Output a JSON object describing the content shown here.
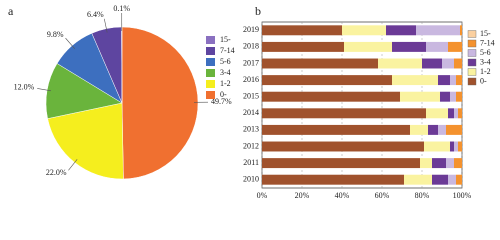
{
  "chart_data": [
    {
      "type": "pie",
      "panel": "a",
      "categories": [
        "0-",
        "1-2",
        "3-4",
        "5-6",
        "7-14",
        "15-"
      ],
      "values": [
        49.7,
        22.0,
        12.0,
        9.8,
        6.4,
        0.1
      ],
      "value_labels": [
        "49.7%",
        "22.0%",
        "12.0%",
        "9.8%",
        "6.4%",
        "0.1%"
      ],
      "colors": [
        "#f07030",
        "#f5ee1e",
        "#6ab43c",
        "#3d6fbf",
        "#5e45a0",
        "#8a70c0"
      ]
    },
    {
      "type": "stacked-bar-horizontal",
      "panel": "b",
      "categories": [
        "2010",
        "2011",
        "2012",
        "2013",
        "2014",
        "2015",
        "2016",
        "2017",
        "2018",
        "2019"
      ],
      "series": [
        {
          "name": "0-",
          "color": "#a0522d",
          "values": [
            71,
            79,
            81,
            74,
            82,
            69,
            65,
            58,
            41,
            40
          ]
        },
        {
          "name": "1-2",
          "color": "#faf3a0",
          "values": [
            14,
            6,
            13,
            9,
            11,
            20,
            23,
            22,
            24,
            22
          ]
        },
        {
          "name": "3-4",
          "color": "#6b3a96",
          "values": [
            8,
            7,
            2,
            5,
            3,
            5,
            6,
            10,
            17,
            15
          ]
        },
        {
          "name": "5-6",
          "color": "#c9b8e0",
          "values": [
            4,
            4,
            2,
            4,
            2,
            3,
            3,
            6,
            11,
            22
          ]
        },
        {
          "name": "7-14",
          "color": "#f4922e",
          "values": [
            3,
            4,
            2,
            8,
            2,
            3,
            3,
            4,
            7,
            1
          ]
        },
        {
          "name": "15-",
          "color": "#fbd0a0",
          "values": [
            0,
            0,
            0,
            0,
            0,
            0,
            0,
            0,
            0,
            0
          ]
        }
      ],
      "xlim": [
        0,
        100
      ],
      "xticks": [
        {
          "value": 0,
          "label": "0%"
        },
        {
          "value": 20,
          "label": "20%"
        },
        {
          "value": 40,
          "label": "40%"
        },
        {
          "value": 60,
          "label": "60%"
        },
        {
          "value": 80,
          "label": "80%"
        },
        {
          "value": 100,
          "label": "100%"
        }
      ],
      "grid": true
    }
  ]
}
